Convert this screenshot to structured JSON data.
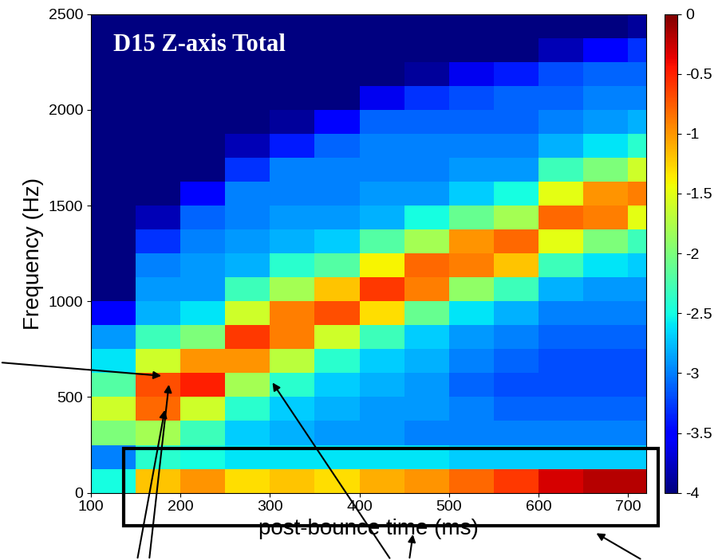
{
  "chart_data": {
    "type": "heatmap",
    "title": "D15 Z-axis Total",
    "xlabel": "post-bounce time (ms)",
    "ylabel": "Frequency (Hz)",
    "x_edges": [
      100,
      150,
      200,
      250,
      300,
      350,
      400,
      450,
      500,
      550,
      600,
      650,
      700,
      720
    ],
    "y_edges": [
      0,
      125,
      250,
      375,
      500,
      625,
      750,
      875,
      1000,
      1125,
      1250,
      1375,
      1500,
      1625,
      1750,
      1875,
      2000,
      2125,
      2250,
      2375,
      2500
    ],
    "values": [
      [
        -2.5,
        -1.2,
        -1.0,
        -1.3,
        -1.2,
        -1.3,
        -1.1,
        -1.0,
        -0.8,
        -0.6,
        -0.3,
        -0.2,
        -0.2
      ],
      [
        -3.0,
        -2.4,
        -2.5,
        -2.6,
        -2.6,
        -2.6,
        -2.6,
        -2.6,
        -2.7,
        -2.7,
        -2.7,
        -2.7,
        -2.7
      ],
      [
        -2.0,
        -1.8,
        -2.3,
        -2.7,
        -2.8,
        -2.9,
        -2.9,
        -3.0,
        -3.0,
        -3.0,
        -3.0,
        -3.0,
        -3.0
      ],
      [
        -1.6,
        -0.8,
        -1.6,
        -2.4,
        -2.7,
        -2.8,
        -2.9,
        -2.9,
        -3.0,
        -3.1,
        -3.1,
        -3.1,
        -3.1
      ],
      [
        -2.2,
        -0.7,
        -0.5,
        -1.8,
        -2.4,
        -2.7,
        -2.8,
        -2.9,
        -3.1,
        -3.2,
        -3.2,
        -3.2,
        -3.2
      ],
      [
        -2.6,
        -1.6,
        -1.0,
        -1.0,
        -1.7,
        -2.4,
        -2.7,
        -2.8,
        -3.0,
        -3.1,
        -3.2,
        -3.2,
        -3.2
      ],
      [
        -2.9,
        -2.3,
        -2.0,
        -0.6,
        -0.9,
        -1.6,
        -2.3,
        -2.7,
        -2.9,
        -3.0,
        -3.1,
        -3.1,
        -3.1
      ],
      [
        -3.5,
        -2.8,
        -2.6,
        -1.6,
        -0.9,
        -0.7,
        -1.3,
        -2.1,
        -2.6,
        -2.8,
        -3.0,
        -3.0,
        -3.0
      ],
      [
        -4,
        -2.9,
        -2.9,
        -2.3,
        -1.8,
        -1.2,
        -0.6,
        -0.9,
        -1.9,
        -2.3,
        -2.8,
        -2.9,
        -2.9
      ],
      [
        -4,
        -3.0,
        -2.9,
        -2.8,
        -2.4,
        -2.2,
        -1.4,
        -0.8,
        -0.9,
        -1.2,
        -2.3,
        -2.6,
        -2.7
      ],
      [
        -4,
        -3.3,
        -3.0,
        -2.9,
        -2.8,
        -2.7,
        -2.2,
        -1.8,
        -1.0,
        -0.8,
        -1.5,
        -2.0,
        -2.3
      ],
      [
        -4,
        -3.8,
        -3.1,
        -3.0,
        -2.9,
        -2.9,
        -2.8,
        -2.5,
        -2.1,
        -1.8,
        -0.8,
        -0.9,
        -1.5
      ],
      [
        -4,
        -4,
        -3.5,
        -3.0,
        -3.0,
        -3.0,
        -2.9,
        -2.9,
        -2.7,
        -2.5,
        -1.5,
        -1.0,
        -0.9
      ],
      [
        -4,
        -4,
        -4,
        -3.3,
        -3.0,
        -3.0,
        -3.0,
        -3.0,
        -2.9,
        -2.9,
        -2.3,
        -2.0,
        -1.6
      ],
      [
        -4,
        -4,
        -4,
        -3.8,
        -3.4,
        -3.1,
        -3.0,
        -3.0,
        -3.0,
        -3.0,
        -2.8,
        -2.6,
        -2.4
      ],
      [
        -4,
        -4,
        -4,
        -4,
        -3.9,
        -3.5,
        -3.1,
        -3.1,
        -3.1,
        -3.1,
        -3.0,
        -2.9,
        -2.8
      ],
      [
        -4,
        -4,
        -4,
        -4,
        -4,
        -4,
        -3.6,
        -3.3,
        -3.2,
        -3.1,
        -3.1,
        -3.0,
        -3.0
      ],
      [
        -4,
        -4,
        -4,
        -4,
        -4,
        -4,
        -4,
        -3.9,
        -3.6,
        -3.4,
        -3.2,
        -3.1,
        -3.1
      ],
      [
        -4,
        -4,
        -4,
        -4,
        -4,
        -4,
        -4,
        -4,
        -4,
        -4,
        -3.8,
        -3.5,
        -3.3
      ],
      [
        -4,
        -4,
        -4,
        -4,
        -4,
        -4,
        -4,
        -4,
        -4,
        -4,
        -4,
        -4,
        -3.9
      ]
    ],
    "xlim": [
      100,
      720
    ],
    "xticks": [
      100,
      200,
      300,
      400,
      500,
      600,
      700
    ],
    "ylim": [
      0,
      2500
    ],
    "yticks": [
      0,
      500,
      1000,
      1500,
      2000,
      2500
    ],
    "colorbar": {
      "range": [
        -4,
        0
      ],
      "ticks": [
        0,
        -0.5,
        -1,
        -1.5,
        -2,
        -2.5,
        -3,
        -3.5,
        -4
      ]
    }
  }
}
